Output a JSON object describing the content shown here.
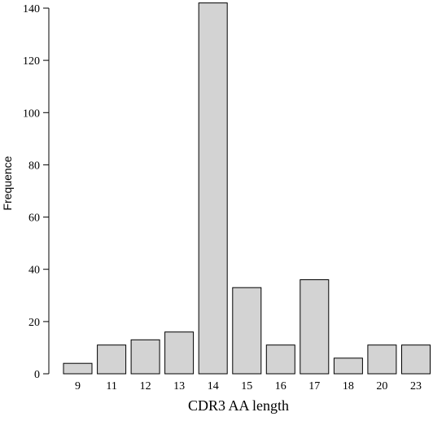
{
  "chart_data": {
    "type": "bar",
    "categories": [
      "9",
      "11",
      "12",
      "13",
      "14",
      "15",
      "16",
      "17",
      "18",
      "20",
      "23"
    ],
    "values": [
      4,
      11,
      13,
      16,
      142,
      33,
      11,
      36,
      6,
      11,
      11
    ],
    "title": "",
    "xlabel": "CDR3 AA length",
    "ylabel": "Frequence",
    "ylim": [
      0,
      140
    ],
    "yticks": [
      0,
      20,
      40,
      60,
      80,
      100,
      120,
      140
    ],
    "grid": false,
    "bar_fill": "#d3d3d3",
    "bar_stroke": "#000000"
  }
}
